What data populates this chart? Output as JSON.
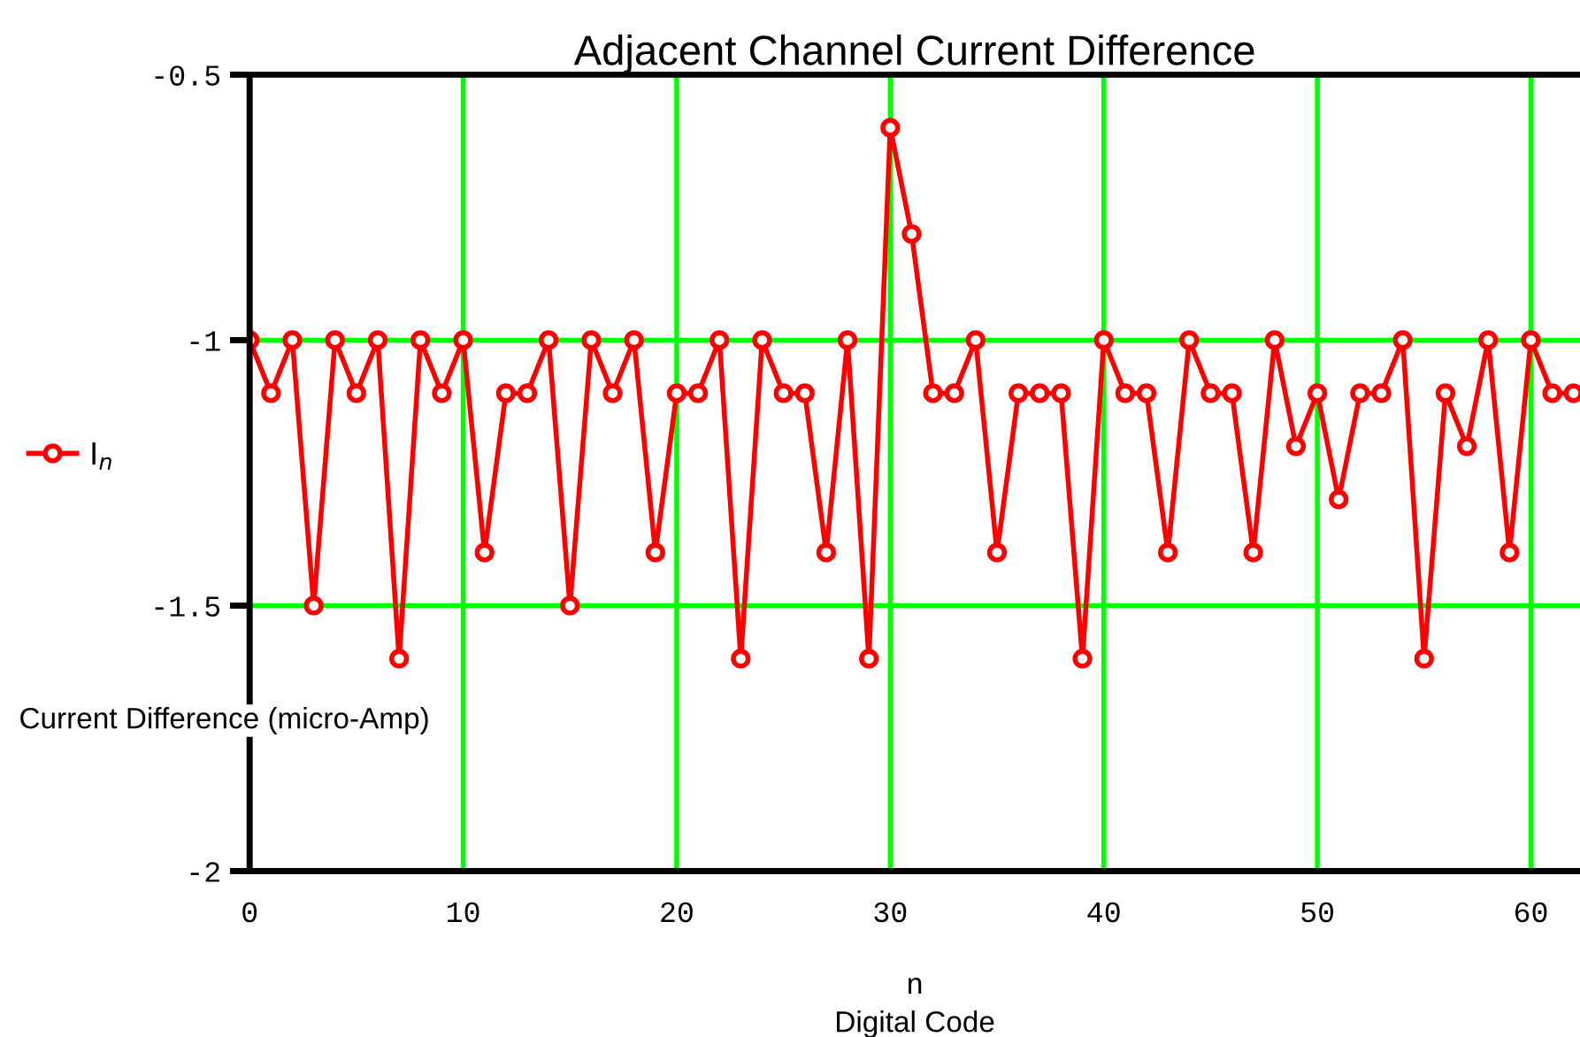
{
  "chart_data": {
    "type": "line",
    "title": "Adjacent Channel Current Difference",
    "xlabel": "n\nDigital Code",
    "ylabel": "Current Difference (micro-Amp)",
    "x": [
      0,
      1,
      2,
      3,
      4,
      5,
      6,
      7,
      8,
      9,
      10,
      11,
      12,
      13,
      14,
      15,
      16,
      17,
      18,
      19,
      20,
      21,
      22,
      23,
      24,
      25,
      26,
      27,
      28,
      29,
      30,
      31,
      32,
      33,
      34,
      35,
      36,
      37,
      38,
      39,
      40,
      41,
      42,
      43,
      44,
      45,
      46,
      47,
      48,
      49,
      50,
      51,
      52,
      53,
      54,
      55,
      56,
      57,
      58,
      59,
      60,
      61,
      62
    ],
    "series": [
      {
        "name": "I$_{n}$",
        "color": "#ff0000",
        "values": [
          -1,
          -1.1,
          -1,
          -1.5,
          -1,
          -1.1,
          -1,
          -1.6,
          -1,
          -1.1,
          -1,
          -1.4,
          -1.1,
          -1.1,
          -1,
          -1.5,
          -1,
          -1.1,
          -1,
          -1.4,
          -1.1,
          -1.1,
          -1,
          -1.6,
          -1,
          -1.1,
          -1.1,
          -1.4,
          -1,
          -1.6,
          -0.6,
          -0.8,
          -1.1,
          -1.1,
          -1,
          -1.4,
          -1.1,
          -1.1,
          -1.1,
          -1.6,
          -1,
          -1.1,
          -1.1,
          -1.4,
          -1,
          -1.1,
          -1.1,
          -1.4,
          -1,
          -1.2,
          -1.1,
          -1.3,
          -1.1,
          -1.1,
          -1,
          -1.6,
          -1.1,
          -1.2,
          -1,
          -1.4,
          -1,
          -1.1,
          -1.1
        ]
      }
    ],
    "xlim": [
      0,
      62.3
    ],
    "xticks": [
      0,
      10,
      20,
      30,
      40,
      50,
      60
    ],
    "ylim": [
      -2,
      -0.5
    ],
    "yticks": [
      -0.5,
      -1,
      -1.5,
      -2
    ],
    "grid": true,
    "legend": "left",
    "marker": "circle",
    "line_style": "solid"
  }
}
